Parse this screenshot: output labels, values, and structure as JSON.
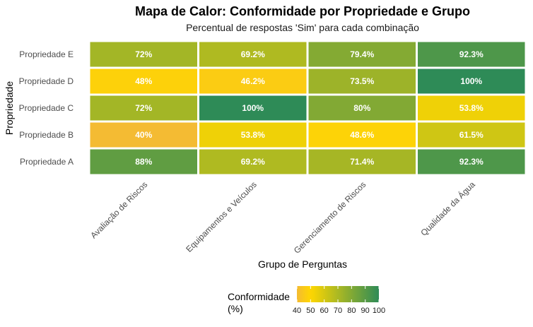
{
  "chart_data": {
    "type": "heatmap",
    "title": "Mapa de Calor: Conformidade por Propriedade e Grupo",
    "subtitle": "Percentual de respostas 'Sim' para cada combinação",
    "xlabel": "Grupo de Perguntas",
    "ylabel": "Propriedade",
    "x_categories": [
      "Avaliação de Riscos",
      "Equipamentos e Veículos",
      "Gerenciamento de Riscos",
      "Qualidade da Água"
    ],
    "y_categories_top_to_bottom": [
      "Propriedade E",
      "Propriedade D",
      "Propriedade C",
      "Propriedade B",
      "Propriedade A"
    ],
    "values": [
      [
        72,
        69.2,
        79.4,
        92.3
      ],
      [
        48,
        46.2,
        73.5,
        100
      ],
      [
        72,
        100,
        80,
        53.8
      ],
      [
        40,
        53.8,
        48.6,
        61.5
      ],
      [
        88,
        69.2,
        71.4,
        92.3
      ]
    ],
    "cell_labels": [
      [
        "72%",
        "69.2%",
        "79.4%",
        "92.3%"
      ],
      [
        "48%",
        "46.2%",
        "73.5%",
        "100%"
      ],
      [
        "72%",
        "100%",
        "80%",
        "53.8%"
      ],
      [
        "40%",
        "53.8%",
        "48.6%",
        "61.5%"
      ],
      [
        "88%",
        "69.2%",
        "71.4%",
        "92.3%"
      ]
    ],
    "color_scale": {
      "domain": [
        40,
        50,
        100
      ],
      "colors": [
        "#F4BB33",
        "#FFD700",
        "#2E8B57"
      ]
    },
    "legend": {
      "title_line1": "Conformidade",
      "title_line2": "(%)",
      "ticks": [
        40,
        50,
        60,
        70,
        80,
        90,
        100
      ],
      "range": [
        40,
        100
      ],
      "placement": "bottom"
    },
    "grid": false
  }
}
